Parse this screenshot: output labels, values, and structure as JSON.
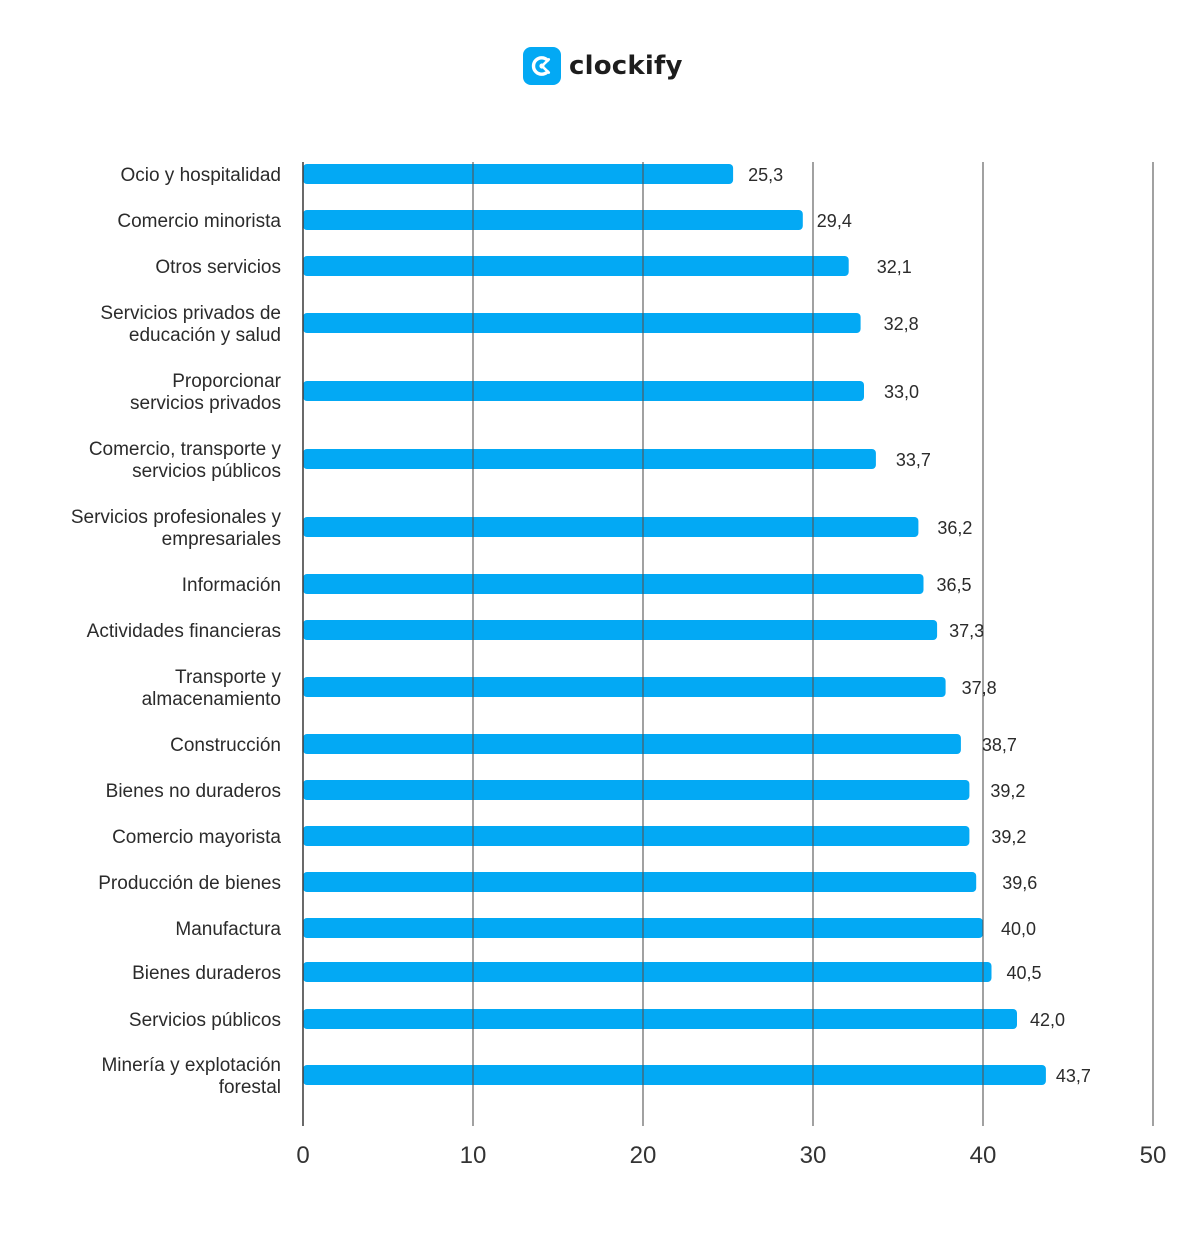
{
  "brand": {
    "name": "clockify",
    "accent": "#03a9f4"
  },
  "chart_data": {
    "type": "bar",
    "orientation": "horizontal",
    "categories": [
      [
        "Ocio y hospitalidad"
      ],
      [
        "Comercio minorista"
      ],
      [
        "Otros servicios"
      ],
      [
        "Servicios privados de",
        "educación y salud"
      ],
      [
        "Proporcionar",
        "servicios privados"
      ],
      [
        "Comercio, transporte y",
        "servicios públicos"
      ],
      [
        "Servicios profesionales y",
        "empresariales"
      ],
      [
        "Información"
      ],
      [
        "Actividades financieras"
      ],
      [
        "Transporte y",
        "almacenamiento"
      ],
      [
        "Construcción"
      ],
      [
        "Bienes no duraderos"
      ],
      [
        "Comercio mayorista"
      ],
      [
        "Producción de bienes"
      ],
      [
        "Manufactura"
      ],
      [
        "Bienes duraderos"
      ],
      [
        "Servicios públicos"
      ],
      [
        "Minería y explotación",
        "forestal"
      ]
    ],
    "values": [
      25.3,
      29.4,
      32.1,
      32.8,
      33.0,
      33.7,
      36.2,
      36.5,
      37.3,
      37.8,
      38.7,
      39.2,
      39.2,
      39.6,
      40.0,
      40.5,
      42.0,
      43.7
    ],
    "value_labels": [
      "25,3",
      "29,4",
      "32,1",
      "32,8",
      "33,0",
      "33,7",
      "36,2",
      "36,5",
      "37,3",
      "37,8",
      "38,7",
      "39,2",
      "39,2",
      "39,6",
      "40,0",
      "40,5",
      "42,0",
      "43,7"
    ],
    "xlim": [
      0,
      50
    ],
    "xticks": [
      0,
      10,
      20,
      30,
      40,
      50
    ],
    "xtick_labels": [
      "0",
      "10",
      "20",
      "30",
      "40",
      "50"
    ],
    "grid": true,
    "bar_color": "#03a9f4",
    "title": "",
    "xlabel": "",
    "ylabel": ""
  }
}
